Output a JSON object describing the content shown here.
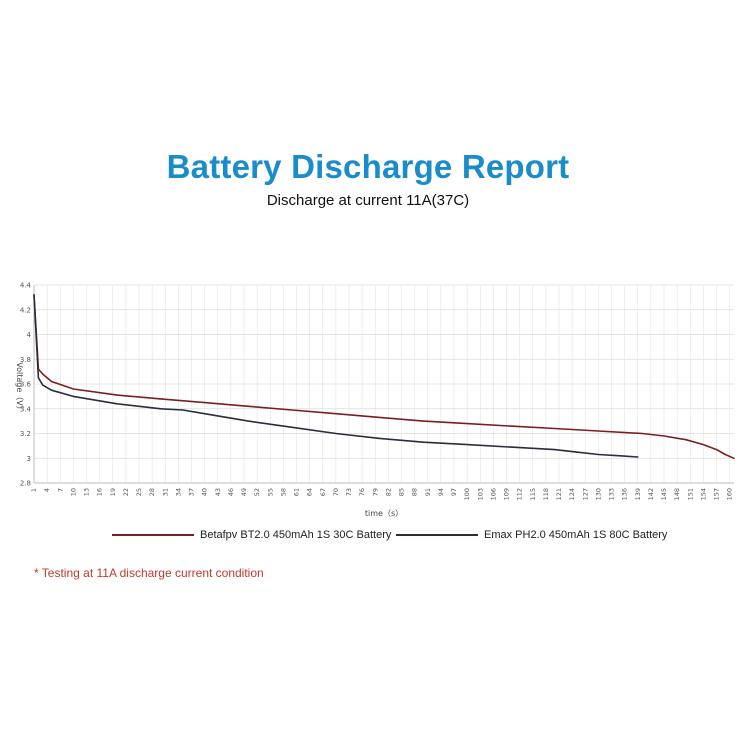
{
  "chart_data": {
    "type": "line",
    "title": "Battery Discharge Report",
    "subtitle": "Discharge at current 11A(37C)",
    "xlabel": "time（s）",
    "ylabel": "Voltage（V）",
    "xlim": [
      1,
      161
    ],
    "ylim": [
      2.8,
      4.4
    ],
    "yticks": [
      2.8,
      3,
      3.2,
      3.4,
      3.6,
      3.8,
      4,
      4.2,
      4.4
    ],
    "xticks": [
      1,
      4,
      7,
      10,
      13,
      16,
      19,
      22,
      25,
      28,
      31,
      34,
      37,
      40,
      43,
      46,
      49,
      52,
      55,
      58,
      61,
      64,
      67,
      70,
      73,
      76,
      79,
      82,
      85,
      88,
      91,
      94,
      97,
      100,
      103,
      106,
      109,
      112,
      115,
      118,
      121,
      124,
      127,
      130,
      133,
      136,
      139,
      142,
      145,
      148,
      151,
      154,
      157,
      160
    ],
    "grid": true,
    "legend_position": "bottom",
    "series": [
      {
        "name": "Betafpv BT2.0 450mAh 1S 30C Battery",
        "color": "#7a1f1f",
        "x": [
          1,
          2,
          3,
          5,
          10,
          20,
          30,
          40,
          50,
          60,
          70,
          80,
          90,
          100,
          110,
          120,
          130,
          140,
          145,
          150,
          154,
          157,
          159,
          161
        ],
        "y": [
          4.32,
          3.72,
          3.68,
          3.62,
          3.56,
          3.51,
          3.48,
          3.45,
          3.42,
          3.39,
          3.36,
          3.33,
          3.3,
          3.28,
          3.26,
          3.24,
          3.22,
          3.2,
          3.18,
          3.15,
          3.11,
          3.07,
          3.03,
          3.0
        ]
      },
      {
        "name": "Emax PH2.0 450mAh 1S  80C Battery",
        "color": "#2a2d3a",
        "x": [
          1,
          2,
          3,
          5,
          10,
          20,
          30,
          35,
          40,
          50,
          60,
          70,
          80,
          90,
          100,
          110,
          120,
          125,
          130,
          135,
          139
        ],
        "y": [
          4.32,
          3.65,
          3.59,
          3.55,
          3.5,
          3.44,
          3.4,
          3.39,
          3.36,
          3.3,
          3.25,
          3.2,
          3.16,
          3.13,
          3.11,
          3.09,
          3.07,
          3.05,
          3.03,
          3.02,
          3.01
        ]
      }
    ]
  },
  "footnote": "* Testing at 11A discharge current condition"
}
